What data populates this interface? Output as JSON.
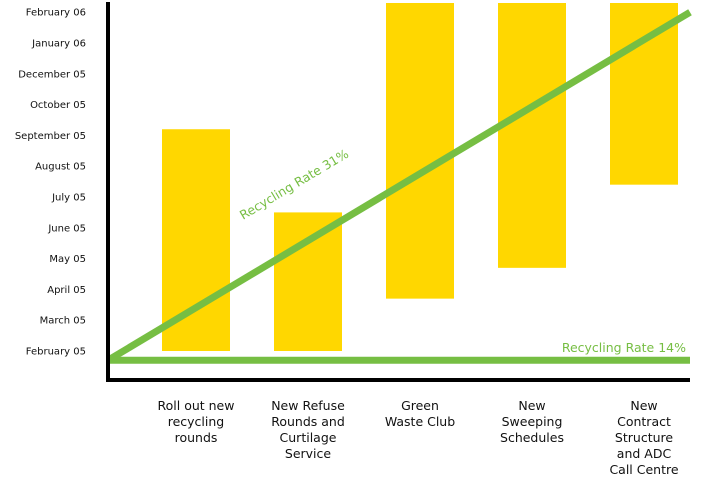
{
  "chart_data": {
    "type": "bar",
    "y_axis_ticks": [
      "February 05",
      "March 05",
      "April 05",
      "May 05",
      "June 05",
      "July 05",
      "August 05",
      "September 05",
      "October 05",
      "December 05",
      "January 06",
      "February 06"
    ],
    "categories": [
      [
        "Roll out new",
        "recycling",
        "rounds"
      ],
      [
        "New Refuse",
        "Rounds and",
        "Curtilage",
        "Service"
      ],
      [
        "Green",
        "Waste Club"
      ],
      [
        "New",
        "Sweeping",
        "Schedules"
      ],
      [
        "New",
        "Contract",
        "Structure",
        "and ADC",
        "Call Centre"
      ]
    ],
    "bars": [
      {
        "start": 0,
        "end": 7.2
      },
      {
        "start": 0,
        "end": 4.5
      },
      {
        "start": 1.7,
        "end": 11.4
      },
      {
        "start": 2.7,
        "end": 11.4
      },
      {
        "start": 5.4,
        "end": 11.4
      }
    ],
    "lines": [
      {
        "label": "Recycling Rate 31%",
        "from": [
          0,
          -0.3
        ],
        "to": [
          1,
          11.0
        ]
      },
      {
        "label": "Recycling Rate 14%",
        "from": [
          0,
          -0.3
        ],
        "to": [
          1,
          -0.3
        ]
      }
    ],
    "grid": false,
    "legend": "none"
  },
  "colors": {
    "bar": "#FFD700",
    "line": "#76BE43",
    "axis": "#000000"
  }
}
